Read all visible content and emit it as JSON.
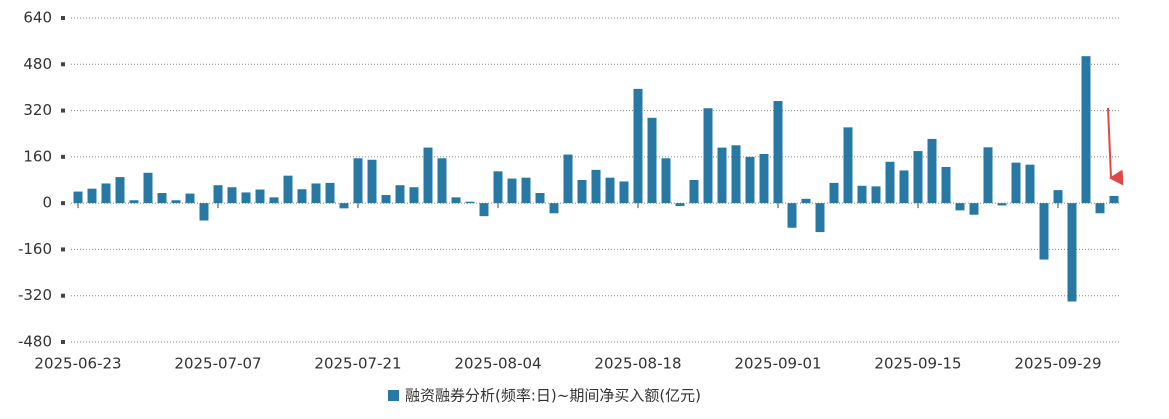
{
  "chart_data": {
    "type": "bar",
    "categories": [
      "2025-06-23",
      null,
      null,
      null,
      null,
      null,
      null,
      null,
      null,
      null,
      "2025-07-07",
      null,
      null,
      null,
      null,
      null,
      null,
      null,
      null,
      null,
      "2025-07-21",
      null,
      null,
      null,
      null,
      null,
      null,
      null,
      null,
      null,
      "2025-08-04",
      null,
      null,
      null,
      null,
      null,
      null,
      null,
      null,
      null,
      "2025-08-18",
      null,
      null,
      null,
      null,
      null,
      null,
      null,
      null,
      null,
      "2025-09-01",
      null,
      null,
      null,
      null,
      null,
      null,
      null,
      null,
      null,
      "2025-09-15",
      null,
      null,
      null,
      null,
      null,
      null,
      null,
      null,
      null,
      "2025-09-29",
      null,
      null,
      null,
      null
    ],
    "series": [
      {
        "name": "融资融券分析(频率:日)~期间净买入额(亿元)",
        "color": "#2878a4",
        "values": [
          40,
          50,
          68,
          90,
          10,
          105,
          35,
          10,
          33,
          -60,
          62,
          55,
          37,
          47,
          20,
          95,
          48,
          68,
          70,
          -18,
          155,
          150,
          28,
          62,
          55,
          192,
          155,
          20,
          5,
          -45,
          110,
          85,
          88,
          35,
          -35,
          168,
          80,
          115,
          88,
          75,
          395,
          295,
          155,
          -10,
          80,
          328,
          192,
          200,
          160,
          170,
          353,
          -85,
          15,
          -100,
          70,
          262,
          60,
          58,
          143,
          113,
          180,
          222,
          125,
          -25,
          -40,
          193,
          -8,
          140,
          133,
          -195,
          45,
          -340,
          508,
          -35,
          25
        ]
      }
    ],
    "ylim": [
      -480,
      640
    ],
    "yticks": [
      640,
      480,
      320,
      160,
      0,
      -160,
      -320,
      -480
    ],
    "grid": true
  }
}
